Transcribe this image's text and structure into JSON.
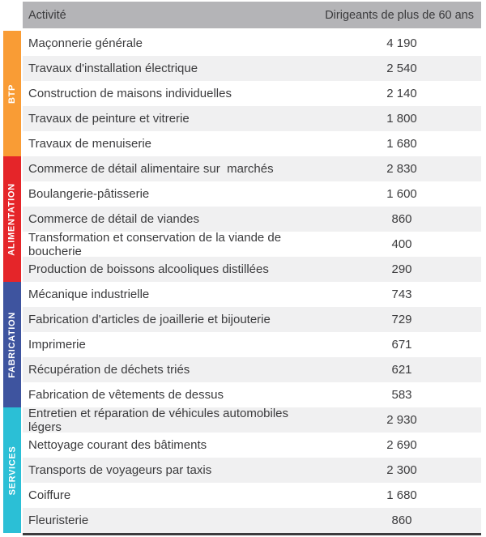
{
  "header": {
    "activity": "Activité",
    "value": "Dirigeants de plus de 60 ans"
  },
  "sections": [
    {
      "label": "BTP",
      "color": "#f99c35",
      "rows": [
        {
          "activity": "Maçonnerie générale",
          "value": "4 190"
        },
        {
          "activity": "Travaux d'installation électrique",
          "value": "2 540"
        },
        {
          "activity": "Construction de maisons individuelles",
          "value": "2 140"
        },
        {
          "activity": "Travaux de peinture et vitrerie",
          "value": "1 800"
        },
        {
          "activity": "Travaux de menuiserie",
          "value": "1 680"
        }
      ]
    },
    {
      "label": "ALIMENTATION",
      "color": "#e52529",
      "rows": [
        {
          "activity": "Commerce de détail alimentaire sur  marchés",
          "value": "2 830"
        },
        {
          "activity": "Boulangerie-pâtisserie",
          "value": "1 600"
        },
        {
          "activity": "Commerce de détail de viandes",
          "value": "860"
        },
        {
          "activity": "Transformation et conservation de la viande de boucherie",
          "value": "400"
        },
        {
          "activity": "Production de boissons alcooliques distillées",
          "value": "290"
        }
      ]
    },
    {
      "label": "FABRICATION",
      "color": "#3e549f",
      "rows": [
        {
          "activity": "Mécanique industrielle",
          "value": "743"
        },
        {
          "activity": "Fabrication d'articles de joaillerie et bijouterie",
          "value": "729"
        },
        {
          "activity": "Imprimerie",
          "value": "671"
        },
        {
          "activity": "Récupération de déchets triés",
          "value": "621"
        },
        {
          "activity": "Fabrication de vêtements de dessus",
          "value": "583"
        }
      ]
    },
    {
      "label": "SERVICES",
      "color": "#2bbfd6",
      "rows": [
        {
          "activity": "Entretien et réparation de véhicules automobiles légers",
          "value": "2 930"
        },
        {
          "activity": "Nettoyage courant des bâtiments",
          "value": "2 690"
        },
        {
          "activity": "Transports de voyageurs par taxis",
          "value": "2 300"
        },
        {
          "activity": "Coiffure",
          "value": "1 680"
        },
        {
          "activity": "Fleuristerie",
          "value": "860"
        }
      ]
    }
  ],
  "colors": {
    "header_background": "#b4b4b7",
    "row_alt_background": "#f0f0f1",
    "text": "#3b3b3d",
    "bottom_border": "#3b3b3d",
    "btp": "#f99c35",
    "alimentation": "#e52529",
    "fabrication": "#3e549f",
    "services": "#2bbfd6"
  },
  "chart_data": {
    "type": "table",
    "title": "",
    "columns": [
      "Activité",
      "Dirigeants de plus de 60 ans"
    ],
    "groups": [
      {
        "name": "BTP",
        "rows": [
          [
            "Maçonnerie générale",
            4190
          ],
          [
            "Travaux d'installation électrique",
            2540
          ],
          [
            "Construction de maisons individuelles",
            2140
          ],
          [
            "Travaux de peinture et vitrerie",
            1800
          ],
          [
            "Travaux de menuiserie",
            1680
          ]
        ]
      },
      {
        "name": "ALIMENTATION",
        "rows": [
          [
            "Commerce de détail alimentaire sur marchés",
            2830
          ],
          [
            "Boulangerie-pâtisserie",
            1600
          ],
          [
            "Commerce de détail de viandes",
            860
          ],
          [
            "Transformation et conservation de la viande de boucherie",
            400
          ],
          [
            "Production de boissons alcooliques distillées",
            290
          ]
        ]
      },
      {
        "name": "FABRICATION",
        "rows": [
          [
            "Mécanique industrielle",
            743
          ],
          [
            "Fabrication d'articles de joaillerie et bijouterie",
            729
          ],
          [
            "Imprimerie",
            671
          ],
          [
            "Récupération de déchets triés",
            621
          ],
          [
            "Fabrication de vêtements de dessus",
            583
          ]
        ]
      },
      {
        "name": "SERVICES",
        "rows": [
          [
            "Entretien et réparation de véhicules automobiles légers",
            2930
          ],
          [
            "Nettoyage courant des bâtiments",
            2690
          ],
          [
            "Transports de voyageurs par taxis",
            2300
          ],
          [
            "Coiffure",
            1680
          ],
          [
            "Fleuristerie",
            860
          ]
        ]
      }
    ]
  }
}
